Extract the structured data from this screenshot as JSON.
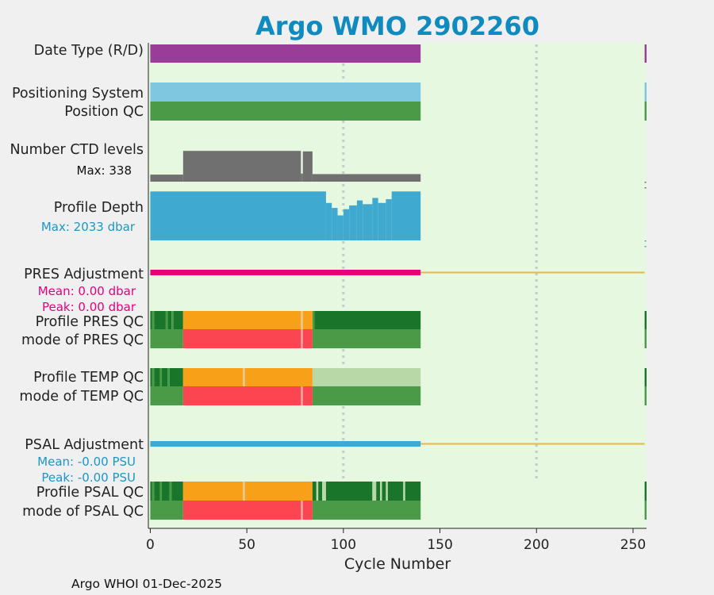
{
  "chart_data": {
    "type": "bar",
    "title": "Argo WMO 2902260",
    "xlabel": "Cycle Number",
    "xlim": [
      -1,
      257
    ],
    "xticks": [
      0,
      50,
      100,
      150,
      200,
      250
    ],
    "xtick_labels": [
      "0",
      "50",
      "100",
      "150",
      "200",
      "250"
    ],
    "vertical_gridlines_at": [
      100,
      200
    ],
    "footer": "Argo WHOI 01-Dec-2025",
    "cycle_blocks": [
      {
        "start": 0,
        "end": 140
      },
      {
        "start": 256,
        "end": 257
      }
    ],
    "rows": [
      {
        "label": "Date Type (R/D)",
        "kind": "status",
        "segments": [
          {
            "start": 0,
            "end": 140,
            "value": "R",
            "color": "#9a3d98"
          },
          {
            "start": 256,
            "end": 257,
            "value": "R",
            "color": "#9a3d98"
          }
        ]
      },
      {
        "label": "Positioning System",
        "kind": "status",
        "segments": [
          {
            "start": 0,
            "end": 140,
            "value": "GPS",
            "color": "#7fc6e0"
          },
          {
            "start": 256,
            "end": 257,
            "value": "GPS",
            "color": "#7fc6e0"
          }
        ]
      },
      {
        "label": "Position QC",
        "kind": "status",
        "segments": [
          {
            "start": 0,
            "end": 140,
            "value": "1",
            "color": "#4a9a48"
          },
          {
            "start": 256,
            "end": 257,
            "value": "1",
            "color": "#4a9a48"
          }
        ]
      },
      {
        "label": "Number CTD levels",
        "kind": "series",
        "sublabel": "Max: 338",
        "max": 338,
        "color": "#707070",
        "series": [
          {
            "start": 0,
            "end": 17,
            "value": 70
          },
          {
            "start": 17,
            "end": 78,
            "value": 305
          },
          {
            "start": 78,
            "end": 79,
            "value": 80
          },
          {
            "start": 79,
            "end": 84,
            "value": 300
          },
          {
            "start": 84,
            "end": 140,
            "value": 75
          }
        ]
      },
      {
        "label": "Profile Depth",
        "kind": "series",
        "sublabel": "Max: 2033 dbar",
        "max": 2033,
        "color": "#40a9d0",
        "series": [
          {
            "start": 0,
            "end": 91,
            "value": 1960
          },
          {
            "start": 91,
            "end": 94,
            "value": 1500
          },
          {
            "start": 94,
            "end": 97,
            "value": 1300
          },
          {
            "start": 97,
            "end": 100,
            "value": 1000
          },
          {
            "start": 100,
            "end": 103,
            "value": 1250
          },
          {
            "start": 103,
            "end": 107,
            "value": 1400
          },
          {
            "start": 107,
            "end": 110,
            "value": 1600
          },
          {
            "start": 110,
            "end": 115,
            "value": 1450
          },
          {
            "start": 115,
            "end": 118,
            "value": 1700
          },
          {
            "start": 118,
            "end": 122,
            "value": 1500
          },
          {
            "start": 122,
            "end": 125,
            "value": 1650
          },
          {
            "start": 125,
            "end": 140,
            "value": 1960
          }
        ]
      },
      {
        "label": "PRES Adjustment",
        "kind": "adjustment",
        "sublabels": [
          "Mean: 0.00 dbar",
          "Peak: 0.00 dbar"
        ],
        "color": "#e6007e",
        "range": [
          0,
          140
        ],
        "reference_color": "#f0b43c"
      },
      {
        "label": "Profile PRES QC",
        "kind": "status",
        "segments": [
          {
            "start": 0,
            "end": 1,
            "value": "A",
            "color": "#19752a"
          },
          {
            "start": 1,
            "end": 2,
            "value": "B",
            "color": "#4a9a48"
          },
          {
            "start": 2,
            "end": 8,
            "value": "A",
            "color": "#19752a"
          },
          {
            "start": 8,
            "end": 9,
            "value": "B",
            "color": "#4a9a48"
          },
          {
            "start": 9,
            "end": 11,
            "value": "A",
            "color": "#19752a"
          },
          {
            "start": 11,
            "end": 12,
            "value": "B",
            "color": "#4a9a48"
          },
          {
            "start": 12,
            "end": 17,
            "value": "A",
            "color": "#19752a"
          },
          {
            "start": 17,
            "end": 78,
            "value": "C",
            "color": "#f7a018"
          },
          {
            "start": 78,
            "end": 79,
            "value": "B",
            "color": "#e8c590"
          },
          {
            "start": 79,
            "end": 84,
            "value": "C",
            "color": "#f7a018"
          },
          {
            "start": 84,
            "end": 85,
            "value": "B",
            "color": "#4a9a48"
          },
          {
            "start": 85,
            "end": 140,
            "value": "A",
            "color": "#19752a"
          },
          {
            "start": 256,
            "end": 257,
            "value": "A",
            "color": "#19752a"
          }
        ]
      },
      {
        "label": "mode of PRES QC",
        "kind": "status",
        "segments": [
          {
            "start": 0,
            "end": 17,
            "value": "1",
            "color": "#4a9a48"
          },
          {
            "start": 17,
            "end": 78,
            "value": "4",
            "color": "#fb4550"
          },
          {
            "start": 78,
            "end": 79,
            "value": "3",
            "color": "#e8a0a0"
          },
          {
            "start": 79,
            "end": 84,
            "value": "4",
            "color": "#fb4550"
          },
          {
            "start": 84,
            "end": 140,
            "value": "1",
            "color": "#4a9a48"
          },
          {
            "start": 256,
            "end": 257,
            "value": "1",
            "color": "#4a9a48"
          }
        ]
      },
      {
        "label": "Profile TEMP QC",
        "kind": "status",
        "segments": [
          {
            "start": 0,
            "end": 1,
            "value": "A",
            "color": "#19752a"
          },
          {
            "start": 1,
            "end": 2,
            "value": "B",
            "color": "#4a9a48"
          },
          {
            "start": 2,
            "end": 5,
            "value": "A",
            "color": "#19752a"
          },
          {
            "start": 5,
            "end": 6,
            "value": "B",
            "color": "#4a9a48"
          },
          {
            "start": 6,
            "end": 9,
            "value": "A",
            "color": "#19752a"
          },
          {
            "start": 9,
            "end": 10,
            "value": "B",
            "color": "#4a9a48"
          },
          {
            "start": 10,
            "end": 17,
            "value": "A",
            "color": "#19752a"
          },
          {
            "start": 17,
            "end": 48,
            "value": "C",
            "color": "#f7a018"
          },
          {
            "start": 48,
            "end": 49,
            "value": "B",
            "color": "#e8c590"
          },
          {
            "start": 49,
            "end": 84,
            "value": "C",
            "color": "#f7a018"
          },
          {
            "start": 84,
            "end": 140,
            "value": "B",
            "color": "#b8d8a8"
          },
          {
            "start": 256,
            "end": 257,
            "value": "A",
            "color": "#19752a"
          }
        ]
      },
      {
        "label": "mode of TEMP QC",
        "kind": "status",
        "segments": [
          {
            "start": 0,
            "end": 17,
            "value": "1",
            "color": "#4a9a48"
          },
          {
            "start": 17,
            "end": 78,
            "value": "4",
            "color": "#fb4550"
          },
          {
            "start": 78,
            "end": 79,
            "value": "3",
            "color": "#e8a0a0"
          },
          {
            "start": 79,
            "end": 84,
            "value": "4",
            "color": "#fb4550"
          },
          {
            "start": 84,
            "end": 140,
            "value": "1",
            "color": "#4a9a48"
          },
          {
            "start": 256,
            "end": 257,
            "value": "1",
            "color": "#4a9a48"
          }
        ]
      },
      {
        "label": "PSAL Adjustment",
        "kind": "adjustment",
        "sublabels": [
          "Mean: -0.00 PSU",
          "Peak: -0.00 PSU"
        ],
        "color": "#40a9d0",
        "range": [
          0,
          140
        ],
        "reference_color": "#f0b43c"
      },
      {
        "label": "Profile PSAL QC",
        "kind": "status",
        "segments": [
          {
            "start": 0,
            "end": 1,
            "value": "A",
            "color": "#19752a"
          },
          {
            "start": 1,
            "end": 2,
            "value": "B",
            "color": "#4a9a48"
          },
          {
            "start": 2,
            "end": 5,
            "value": "A",
            "color": "#19752a"
          },
          {
            "start": 5,
            "end": 6,
            "value": "B",
            "color": "#4a9a48"
          },
          {
            "start": 6,
            "end": 10,
            "value": "A",
            "color": "#19752a"
          },
          {
            "start": 10,
            "end": 11,
            "value": "B",
            "color": "#4a9a48"
          },
          {
            "start": 11,
            "end": 17,
            "value": "A",
            "color": "#19752a"
          },
          {
            "start": 17,
            "end": 48,
            "value": "C",
            "color": "#f7a018"
          },
          {
            "start": 48,
            "end": 49,
            "value": "B",
            "color": "#e8c590"
          },
          {
            "start": 49,
            "end": 84,
            "value": "C",
            "color": "#f7a018"
          },
          {
            "start": 84,
            "end": 86,
            "value": "A",
            "color": "#19752a"
          },
          {
            "start": 86,
            "end": 87,
            "value": "B",
            "color": "#b8d8a8"
          },
          {
            "start": 87,
            "end": 89,
            "value": "A",
            "color": "#19752a"
          },
          {
            "start": 89,
            "end": 91,
            "value": "B",
            "color": "#b8d8a8"
          },
          {
            "start": 91,
            "end": 115,
            "value": "A",
            "color": "#19752a"
          },
          {
            "start": 115,
            "end": 117,
            "value": "B",
            "color": "#b8d8a8"
          },
          {
            "start": 117,
            "end": 119,
            "value": "A",
            "color": "#19752a"
          },
          {
            "start": 119,
            "end": 120,
            "value": "B",
            "color": "#b8d8a8"
          },
          {
            "start": 120,
            "end": 122,
            "value": "A",
            "color": "#19752a"
          },
          {
            "start": 122,
            "end": 123,
            "value": "B",
            "color": "#b8d8a8"
          },
          {
            "start": 123,
            "end": 131,
            "value": "A",
            "color": "#19752a"
          },
          {
            "start": 131,
            "end": 132,
            "value": "B",
            "color": "#b8d8a8"
          },
          {
            "start": 132,
            "end": 140,
            "value": "A",
            "color": "#19752a"
          },
          {
            "start": 256,
            "end": 257,
            "value": "A",
            "color": "#19752a"
          }
        ]
      },
      {
        "label": "mode of PSAL QC",
        "kind": "status",
        "segments": [
          {
            "start": 0,
            "end": 17,
            "value": "1",
            "color": "#4a9a48"
          },
          {
            "start": 17,
            "end": 78,
            "value": "4",
            "color": "#fb4550"
          },
          {
            "start": 78,
            "end": 79,
            "value": "3",
            "color": "#e8a0a0"
          },
          {
            "start": 79,
            "end": 84,
            "value": "4",
            "color": "#fb4550"
          },
          {
            "start": 84,
            "end": 140,
            "value": "1",
            "color": "#4a9a48"
          },
          {
            "start": 256,
            "end": 257,
            "value": "1",
            "color": "#4a9a48"
          }
        ]
      }
    ]
  },
  "colors": {
    "plot_background": "#e6f8e0",
    "figure_background": "#f0f0f0",
    "title": "#0f8bc0",
    "gridline": "#c8c8c8",
    "pres_sublabel": "#e6007e",
    "psal_sublabel": "#1a96c8",
    "depth_sublabel": "#1a96c8",
    "ctd_sublabel": "#111111"
  }
}
